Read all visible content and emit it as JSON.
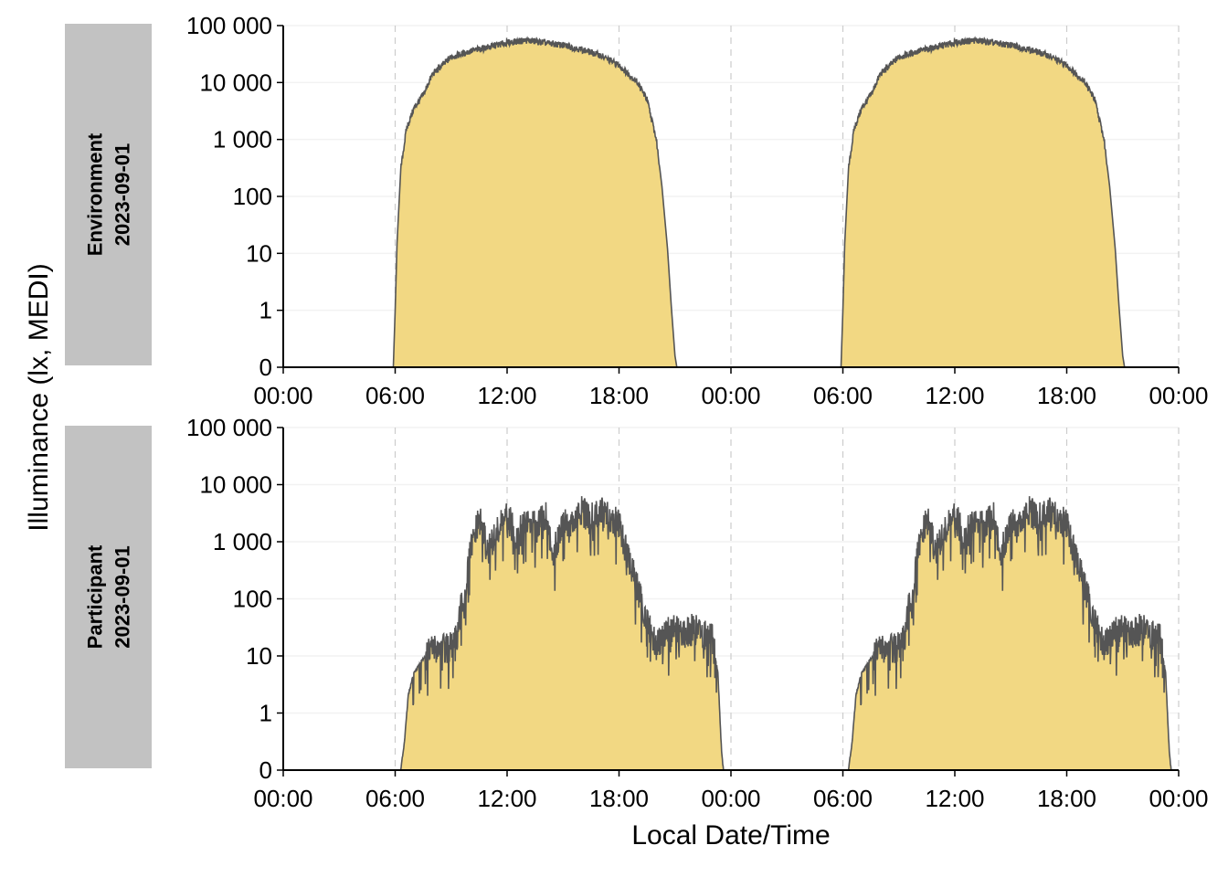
{
  "chart_data": {
    "type": "area",
    "xlabel": "Local Date/Time",
    "ylabel": "Illuminance (lx, MEDI)",
    "y_scale": "symlog",
    "ylim": [
      0,
      100000
    ],
    "x_tick_labels": [
      "00:00",
      "06:00",
      "12:00",
      "18:00",
      "00:00",
      "06:00",
      "12:00",
      "18:00",
      "00:00"
    ],
    "y_tick_labels": [
      "0",
      "1",
      "10",
      "100",
      "1 000",
      "10 000",
      "100 000"
    ],
    "y_tick_values": [
      0,
      1,
      10,
      100,
      1000,
      10000,
      100000
    ],
    "xlim_hours": [
      0,
      48
    ],
    "grid": "dashed vertical at 6-hour ticks",
    "fill_color": "#f2d883",
    "line_color": "#555555",
    "strip_color": "#c2c2c2",
    "panels": [
      {
        "strip_lines": [
          "Environment",
          "2023-09-01"
        ],
        "note": "same day shown twice",
        "hours": [
          0,
          5.9,
          6.0,
          6.1,
          6.3,
          6.6,
          7.0,
          7.5,
          8.0,
          9.0,
          10.0,
          11.0,
          12.0,
          13.0,
          14.0,
          15.0,
          16.0,
          17.0,
          18.0,
          19.0,
          19.5,
          20.0,
          20.3,
          20.6,
          20.8,
          21.0,
          21.1,
          24.0
        ],
        "lux": [
          0,
          0,
          1,
          15,
          300,
          1500,
          3500,
          6000,
          14000,
          28000,
          35000,
          42000,
          50000,
          55000,
          50000,
          45000,
          38000,
          30000,
          20000,
          10000,
          5000,
          1000,
          150,
          12,
          1.2,
          0.2,
          0,
          0
        ]
      },
      {
        "strip_lines": [
          "Participant",
          "2023-09-01"
        ],
        "note": "same day shown twice",
        "hours": [
          0,
          6.3,
          6.5,
          6.7,
          7.0,
          7.5,
          8.0,
          8.5,
          9.0,
          9.3,
          9.5,
          9.8,
          10.0,
          10.5,
          11.0,
          11.5,
          12.0,
          12.5,
          13.0,
          13.5,
          14.0,
          14.5,
          15.0,
          15.5,
          16.0,
          16.5,
          17.0,
          17.5,
          18.0,
          18.5,
          19.0,
          19.5,
          20.0,
          20.5,
          21.0,
          21.5,
          22.0,
          22.5,
          23.0,
          23.3,
          23.5,
          23.6,
          23.8,
          24.0
        ],
        "lux": [
          0,
          0,
          0.5,
          2,
          5,
          9,
          13,
          14,
          14,
          20,
          60,
          150,
          600,
          2500,
          700,
          1500,
          3000,
          1200,
          2500,
          1800,
          3500,
          600,
          2500,
          2000,
          3500,
          2500,
          3500,
          2800,
          2000,
          500,
          150,
          40,
          15,
          25,
          30,
          25,
          30,
          25,
          20,
          5,
          0.3,
          0,
          0,
          0
        ]
      }
    ]
  }
}
